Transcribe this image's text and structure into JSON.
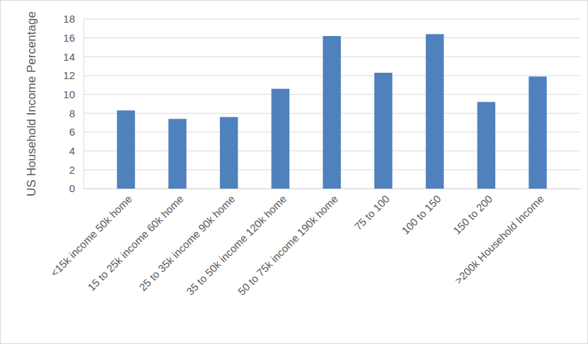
{
  "chart_data": {
    "type": "bar",
    "y_label": "US Household Income Percentage",
    "categories": [
      "<15k income 50k home",
      "15 to 25k income 60k home",
      "25 to 35k income 90k home",
      "35 to 50k income 120k home",
      "50 to 75k income 190k home",
      "75 to 100",
      "100 to 150",
      "150 to 200",
      ">200k Household Income"
    ],
    "values": [
      8.3,
      7.4,
      7.6,
      10.6,
      16.2,
      12.3,
      16.4,
      9.2,
      11.9
    ],
    "color": "#4f81bd",
    "ylim": [
      0,
      18
    ],
    "yticks": [
      0,
      2,
      4,
      6,
      8,
      10,
      12,
      14,
      16,
      18
    ],
    "grid": true
  }
}
